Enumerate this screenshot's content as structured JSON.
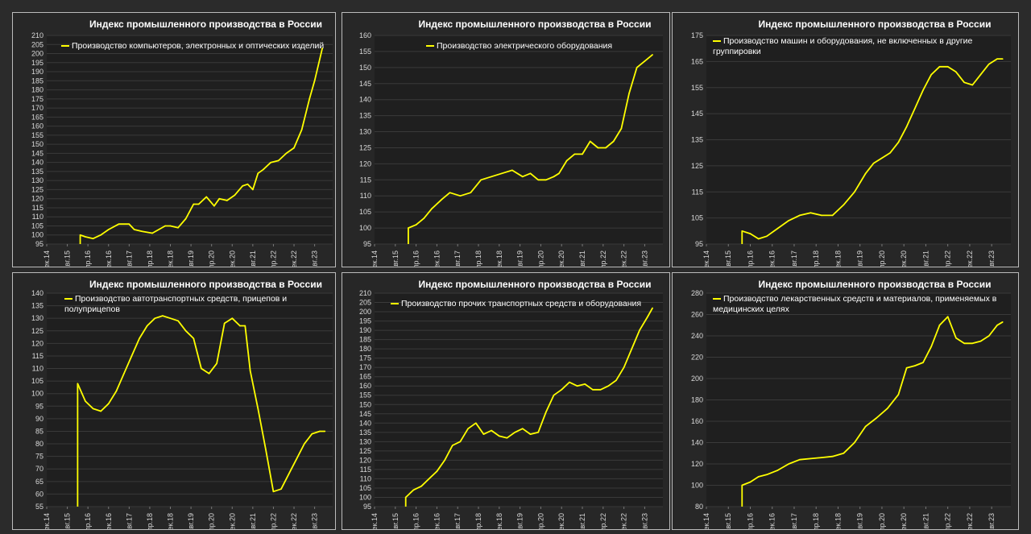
{
  "colors": {
    "background": "#2b2b2b",
    "panel": "#272727",
    "plot": "#1f1f1f",
    "grid": "#3a3a3a",
    "series": "#ffff00",
    "text": "#d9d9d9"
  },
  "chart_data": [
    {
      "type": "line",
      "title": "Индекс промышленного производства в России",
      "series": [
        {
          "name": "Производство компьютеров, электронных и оптических изделий",
          "x": [
            "2016-01",
            "2016-03",
            "2016-06",
            "2016-09",
            "2016-12",
            "2017-04",
            "2017-08",
            "2017-10",
            "2018-01",
            "2018-05",
            "2018-10",
            "2018-12",
            "2019-03",
            "2019-06",
            "2019-09",
            "2019-11",
            "2020-02",
            "2020-05",
            "2020-07",
            "2020-10",
            "2021-01",
            "2021-04",
            "2021-06",
            "2021-08",
            "2021-10",
            "2021-12",
            "2022-03",
            "2022-06",
            "2022-09",
            "2022-12",
            "2023-03",
            "2023-06",
            "2023-08",
            "2023-11"
          ],
          "values": [
            100,
            99,
            98,
            100,
            103,
            106,
            106,
            103,
            102,
            101,
            105,
            105,
            104,
            109,
            117,
            117,
            121,
            116,
            120,
            119,
            122,
            127,
            128,
            125,
            134,
            136,
            140,
            141,
            145,
            148,
            158,
            175,
            185,
            203
          ]
        }
      ],
      "xticks": [
        "дек.14",
        "авг.15",
        "апр.16",
        "дек.16",
        "авг.17",
        "апр.18",
        "дек.18",
        "авг.19",
        "апр.20",
        "дек.20",
        "авг.21",
        "апр.22",
        "дек.22",
        "авг.23"
      ],
      "ylim": [
        95,
        210
      ],
      "ystep": 5
    },
    {
      "type": "line",
      "title": "Индекс промышленного производства в России",
      "series": [
        {
          "name": "Производство электрического оборудования",
          "x": [
            "2016-01",
            "2016-04",
            "2016-07",
            "2016-10",
            "2017-02",
            "2017-05",
            "2017-09",
            "2018-01",
            "2018-05",
            "2018-09",
            "2019-01",
            "2019-05",
            "2019-09",
            "2019-12",
            "2020-03",
            "2020-06",
            "2020-09",
            "2020-11",
            "2021-02",
            "2021-05",
            "2021-08",
            "2021-11",
            "2022-02",
            "2022-05",
            "2022-08",
            "2022-11",
            "2023-02",
            "2023-05",
            "2023-08",
            "2023-11"
          ],
          "values": [
            100,
            101,
            103,
            106,
            109,
            111,
            110,
            111,
            115,
            116,
            117,
            118,
            116,
            117,
            115,
            115,
            116,
            117,
            121,
            123,
            123,
            127,
            125,
            125,
            127,
            131,
            142,
            150,
            152,
            154
          ]
        }
      ],
      "xticks": [
        "дек.14",
        "авг.15",
        "апр.16",
        "дек.16",
        "авг.17",
        "апр.18",
        "дек.18",
        "авг.19",
        "апр.20",
        "дек.20",
        "авг.21",
        "апр.22",
        "дек.22",
        "авг.23"
      ],
      "ylim": [
        95,
        160
      ],
      "ystep": 5
    },
    {
      "type": "line",
      "title": "Индекс промышленного производства в России",
      "series": [
        {
          "name": "Производство машин и оборудования, не включенных в другие группировки",
          "x": [
            "2016-01",
            "2016-04",
            "2016-07",
            "2016-10",
            "2017-02",
            "2017-06",
            "2017-10",
            "2018-02",
            "2018-06",
            "2018-10",
            "2019-02",
            "2019-06",
            "2019-10",
            "2020-01",
            "2020-04",
            "2020-07",
            "2020-10",
            "2021-01",
            "2021-04",
            "2021-07",
            "2021-10",
            "2022-01",
            "2022-04",
            "2022-07",
            "2022-10",
            "2023-01",
            "2023-04",
            "2023-07",
            "2023-10",
            "2023-12"
          ],
          "values": [
            100,
            99,
            97,
            98,
            101,
            104,
            106,
            107,
            106,
            106,
            110,
            115,
            122,
            126,
            128,
            130,
            134,
            140,
            147,
            154,
            160,
            163,
            163,
            161,
            157,
            156,
            160,
            164,
            166,
            166
          ]
        }
      ],
      "xticks": [
        "дек.14",
        "авг.15",
        "апр.16",
        "дек.16",
        "авг.17",
        "апр.18",
        "дек.18",
        "авг.19",
        "апр.20",
        "дек.20",
        "авг.21",
        "апр.22",
        "дек.22",
        "авг.23"
      ],
      "ylim": [
        95,
        175
      ],
      "ystep": 10
    },
    {
      "type": "line",
      "title": "Индекс промышленного производства в России",
      "series": [
        {
          "name": "Производство автотранспортных средств, прицепов и полуприцепов",
          "x": [
            "2015-12",
            "2016-03",
            "2016-06",
            "2016-09",
            "2016-12",
            "2017-03",
            "2017-06",
            "2017-09",
            "2017-12",
            "2018-03",
            "2018-06",
            "2018-09",
            "2018-12",
            "2019-03",
            "2019-06",
            "2019-09",
            "2019-12",
            "2020-03",
            "2020-06",
            "2020-09",
            "2020-12",
            "2021-03",
            "2021-05",
            "2021-07",
            "2021-10",
            "2022-01",
            "2022-04",
            "2022-07",
            "2022-09",
            "2022-11",
            "2023-01",
            "2023-04",
            "2023-07",
            "2023-10",
            "2023-12"
          ],
          "values": [
            104,
            97,
            94,
            93,
            96,
            101,
            108,
            115,
            122,
            127,
            130,
            131,
            130,
            129,
            125,
            122,
            110,
            108,
            112,
            128,
            130,
            127,
            127,
            109,
            94,
            78,
            61,
            62,
            66,
            70,
            74,
            80,
            84,
            85,
            85
          ]
        }
      ],
      "xticks": [
        "дек.14",
        "авг.15",
        "апр.16",
        "дек.16",
        "авг.17",
        "апр.18",
        "дек.18",
        "авг.19",
        "апр.20",
        "дек.20",
        "авг.21",
        "апр.22",
        "дек.22",
        "авг.23"
      ],
      "ylim": [
        55,
        140
      ],
      "ystep": 5
    },
    {
      "type": "line",
      "title": "Индекс промышленного производства в России",
      "series": [
        {
          "name": "Производство прочих транспортных средств и оборудования",
          "x": [
            "2015-12",
            "2016-03",
            "2016-06",
            "2016-09",
            "2016-12",
            "2017-03",
            "2017-06",
            "2017-09",
            "2017-12",
            "2018-03",
            "2018-06",
            "2018-09",
            "2018-12",
            "2019-03",
            "2019-06",
            "2019-09",
            "2019-12",
            "2020-03",
            "2020-06",
            "2020-09",
            "2020-12",
            "2021-03",
            "2021-06",
            "2021-09",
            "2021-12",
            "2022-03",
            "2022-06",
            "2022-09",
            "2022-12",
            "2023-03",
            "2023-06",
            "2023-09",
            "2023-11"
          ],
          "values": [
            100,
            104,
            106,
            110,
            114,
            120,
            128,
            130,
            137,
            140,
            134,
            136,
            133,
            132,
            135,
            137,
            134,
            135,
            146,
            155,
            158,
            162,
            160,
            161,
            158,
            158,
            160,
            163,
            170,
            180,
            190,
            197,
            202
          ]
        }
      ],
      "xticks": [
        "дек.14",
        "авг.15",
        "апр.16",
        "дек.16",
        "авг.17",
        "апр.18",
        "дек.18",
        "авг.19",
        "апр.20",
        "дек.20",
        "авг.21",
        "апр.22",
        "дек.22",
        "авг.23"
      ],
      "ylim": [
        95,
        210
      ],
      "ystep": 5
    },
    {
      "type": "line",
      "title": "Индекс промышленного производства в России",
      "series": [
        {
          "name": "Производство лекарственных средств и материалов, применяемых в медицинских целях",
          "x": [
            "2016-01",
            "2016-04",
            "2016-07",
            "2016-10",
            "2017-02",
            "2017-06",
            "2017-10",
            "2018-02",
            "2018-06",
            "2018-10",
            "2019-02",
            "2019-06",
            "2019-10",
            "2020-02",
            "2020-06",
            "2020-10",
            "2021-01",
            "2021-04",
            "2021-07",
            "2021-10",
            "2022-01",
            "2022-04",
            "2022-07",
            "2022-10",
            "2023-01",
            "2023-04",
            "2023-07",
            "2023-10",
            "2023-12"
          ],
          "values": [
            100,
            103,
            108,
            110,
            114,
            120,
            124,
            125,
            126,
            127,
            130,
            140,
            155,
            163,
            172,
            185,
            210,
            212,
            215,
            230,
            250,
            258,
            238,
            233,
            233,
            235,
            240,
            250,
            253
          ]
        }
      ],
      "xticks": [
        "дек.14",
        "авг.15",
        "апр.16",
        "дек.16",
        "авг.17",
        "апр.18",
        "дек.18",
        "авг.19",
        "апр.20",
        "дек.20",
        "авг.21",
        "апр.22",
        "дек.22",
        "авг.23"
      ],
      "ylim": [
        80,
        280
      ],
      "ystep": 20
    }
  ]
}
